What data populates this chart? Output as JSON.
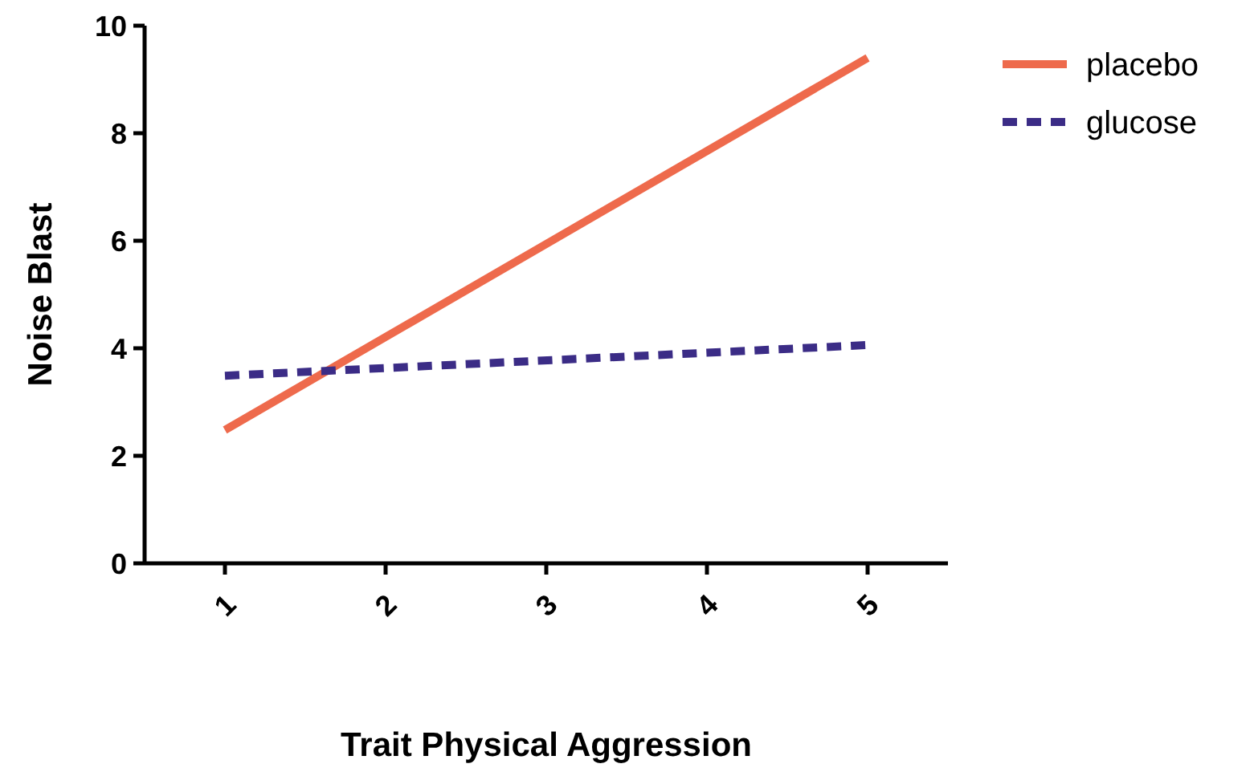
{
  "chart_data": {
    "type": "line",
    "xlabel": "Trait Physical Aggression",
    "ylabel": "Noise Blast",
    "x": [
      1,
      5
    ],
    "series": [
      {
        "name": "placebo",
        "color": "#ee6a4c",
        "values": [
          2.48,
          9.4
        ],
        "line_style": "solid"
      },
      {
        "name": "glucose",
        "color": "#3b2c86",
        "values": [
          3.49,
          4.06
        ],
        "line_style": "dashed"
      }
    ],
    "xlim": [
      0.5,
      5.5
    ],
    "xticks": [
      1,
      2,
      3,
      4,
      5
    ],
    "ylim": [
      0,
      10
    ],
    "yticks": [
      0,
      2,
      4,
      6,
      8,
      10
    ],
    "grid": false,
    "legend": "top right",
    "marker": "none"
  }
}
